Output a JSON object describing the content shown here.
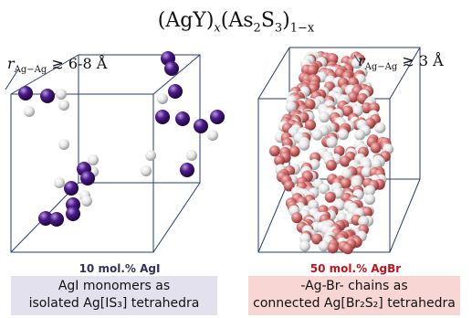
{
  "title": {
    "paren_left": "(",
    "agy": "AgY",
    "paren_mid": ")",
    "x": "x",
    "as2s3_open": "(As",
    "as_sub": "2",
    "s": "S",
    "s_sub": "3",
    "paren_close": ")",
    "exp": "1−x"
  },
  "left_panel": {
    "distance_r": "r",
    "distance_sub": "Ag−Ag",
    "distance_value": " ≳ 6-8 Å",
    "caption": "10 mol.% AgI",
    "description_line1": "AgI monomers as",
    "description_line2": "isolated Ag[IS₃] tetrahedra"
  },
  "right_panel": {
    "distance_r": "r",
    "distance_sub": "Ag−Ag",
    "distance_value": " ≳ 3 Å",
    "caption": "50 mol.% AgBr",
    "description_line1": "-Ag-Br- chains as",
    "description_line2": "connected Ag[Br₂S₂] tetrahedra"
  },
  "colors": {
    "iodine": "#4b1a86",
    "silver": "#e6e6e6",
    "bromine": "#d06f6f",
    "box_edge": "#2a3a7a"
  }
}
